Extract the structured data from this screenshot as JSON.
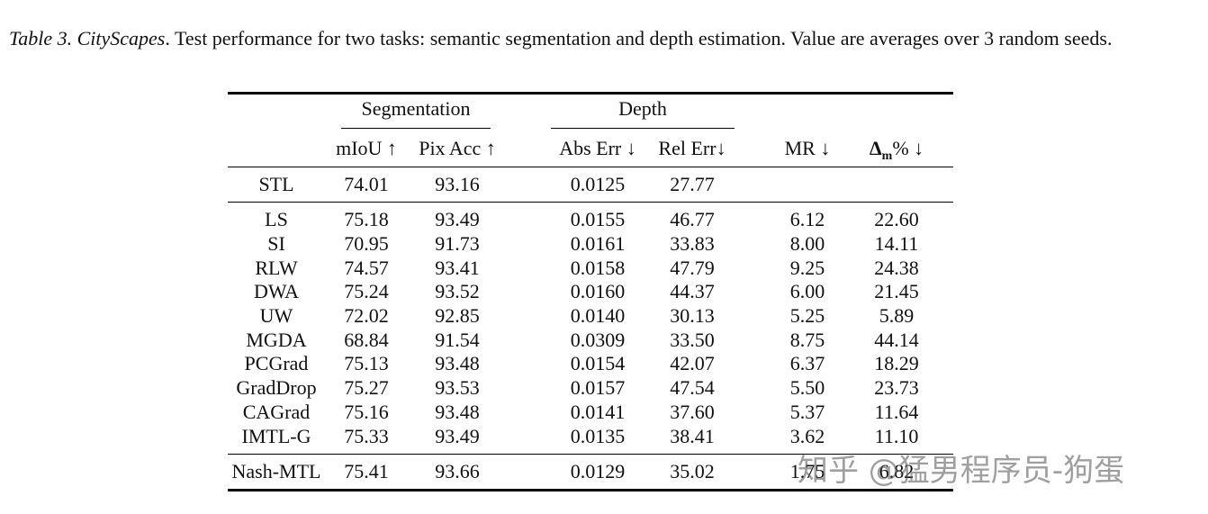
{
  "caption": {
    "label": "Table 3.",
    "name": "CityScapes",
    "text": ". Test performance for two tasks: semantic segmentation and depth estimation. Value are averages over 3 random seeds."
  },
  "table": {
    "groups": {
      "segmentation": "Segmentation",
      "depth": "Depth"
    },
    "columns": {
      "miou": "mIoU ↑",
      "pixacc": "Pix Acc ↑",
      "abserr": "Abs Err ↓",
      "relerr": "Rel Err↓",
      "mr": "MR ↓",
      "delta_symbol": "Δ",
      "delta_sub": "m",
      "delta_rest": "% ↓"
    },
    "stl": {
      "method": "STL",
      "miou": "74.01",
      "pixacc": "93.16",
      "abserr": "0.0125",
      "relerr": "27.77",
      "mr": "",
      "delta": ""
    },
    "rows": [
      {
        "method": "LS",
        "miou": "75.18",
        "pixacc": "93.49",
        "abserr": "0.0155",
        "relerr": "46.77",
        "mr": "6.12",
        "delta": "22.60"
      },
      {
        "method": "SI",
        "miou": "70.95",
        "pixacc": "91.73",
        "abserr": "0.0161",
        "relerr": "33.83",
        "mr": "8.00",
        "delta": "14.11"
      },
      {
        "method": "RLW",
        "miou": "74.57",
        "pixacc": "93.41",
        "abserr": "0.0158",
        "relerr": "47.79",
        "mr": "9.25",
        "delta": "24.38"
      },
      {
        "method": "DWA",
        "miou": "75.24",
        "pixacc": "93.52",
        "abserr": "0.0160",
        "relerr": "44.37",
        "mr": "6.00",
        "delta": "21.45"
      },
      {
        "method": "UW",
        "miou": "72.02",
        "pixacc": "92.85",
        "abserr": "0.0140",
        "relerr": "30.13",
        "mr": "5.25",
        "delta": "5.89"
      },
      {
        "method": "MGDA",
        "miou": "68.84",
        "pixacc": "91.54",
        "abserr": "0.0309",
        "relerr": "33.50",
        "mr": "8.75",
        "delta": "44.14"
      },
      {
        "method": "PCGrad",
        "miou": "75.13",
        "pixacc": "93.48",
        "abserr": "0.0154",
        "relerr": "42.07",
        "mr": "6.37",
        "delta": "18.29"
      },
      {
        "method": "GradDrop",
        "miou": "75.27",
        "pixacc": "93.53",
        "abserr": "0.0157",
        "relerr": "47.54",
        "mr": "5.50",
        "delta": "23.73"
      },
      {
        "method": "CAGrad",
        "miou": "75.16",
        "pixacc": "93.48",
        "abserr": "0.0141",
        "relerr": "37.60",
        "mr": "5.37",
        "delta": "11.64"
      },
      {
        "method": "IMTL-G",
        "miou": "75.33",
        "pixacc": "93.49",
        "abserr": "0.0135",
        "relerr": "38.41",
        "mr": "3.62",
        "delta": "11.10"
      }
    ],
    "nash": {
      "method": "Nash-MTL",
      "miou": "75.41",
      "pixacc": "93.66",
      "abserr": "0.0129",
      "relerr": "35.02",
      "mr": "1.75",
      "delta": "6.82"
    }
  },
  "watermark": "知乎 @猛男程序员-狗蛋"
}
